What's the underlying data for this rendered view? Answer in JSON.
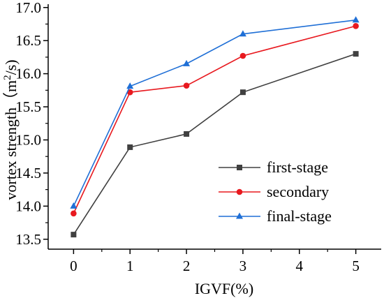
{
  "chart_data": {
    "type": "line",
    "title": "",
    "xlabel": "IGVF(%)",
    "ylabel_prefix": "vortex strength（m",
    "ylabel_sup": "2",
    "ylabel_suffix": "/s)",
    "x": [
      0,
      1,
      2,
      3,
      5
    ],
    "xlim": [
      -0.45,
      5.45
    ],
    "ylim": [
      13.35,
      17.05
    ],
    "xticks": [
      0,
      1,
      2,
      3,
      4,
      5
    ],
    "yticks": [
      13.5,
      14.0,
      14.5,
      15.0,
      15.5,
      16.0,
      16.5,
      17.0
    ],
    "xtick_labels": [
      "0",
      "1",
      "2",
      "3",
      "4",
      "5"
    ],
    "ytick_labels": [
      "13.5",
      "14.0",
      "14.5",
      "15.0",
      "15.5",
      "16.0",
      "16.5",
      "17.0"
    ],
    "grid": false,
    "legend_position": "bottom-right",
    "series": [
      {
        "name": "first-stage",
        "color": "#404040",
        "marker": "square",
        "values": [
          13.57,
          14.89,
          15.09,
          15.72,
          16.3
        ]
      },
      {
        "name": "secondary",
        "color": "#e8191f",
        "marker": "circle",
        "values": [
          13.89,
          15.72,
          15.82,
          16.27,
          16.72
        ]
      },
      {
        "name": "final-stage",
        "color": "#1f6fd6",
        "marker": "triangle",
        "values": [
          14.0,
          15.81,
          16.15,
          16.6,
          16.81
        ]
      }
    ]
  }
}
